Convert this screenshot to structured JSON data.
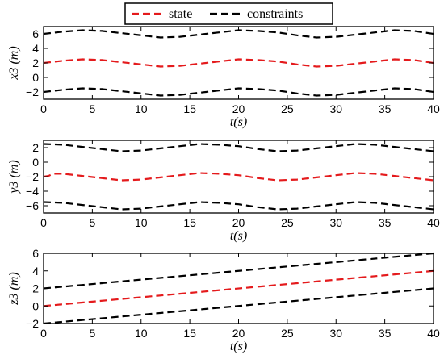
{
  "legend": {
    "items": [
      {
        "label": "state",
        "color": "#e41a1c"
      },
      {
        "label": "constraints",
        "color": "#000000"
      }
    ]
  },
  "chart_data": [
    {
      "type": "line",
      "xlabel": "t(s)",
      "ylabel": "x3 (m)",
      "xlim": [
        0,
        40
      ],
      "ylim": [
        -3,
        7
      ],
      "xticks": [
        0,
        5,
        10,
        15,
        20,
        25,
        30,
        35,
        40
      ],
      "yticks": [
        -2,
        0,
        2,
        4,
        6
      ],
      "grid": false,
      "series": [
        {
          "role": "state",
          "color": "#e41a1c",
          "x": [
            0,
            2,
            4,
            6,
            8,
            10,
            12,
            14,
            16,
            18,
            20,
            22,
            24,
            26,
            28,
            30,
            32,
            34,
            36,
            38,
            40
          ],
          "values": [
            2.0,
            2.3,
            2.5,
            2.4,
            2.1,
            1.8,
            1.5,
            1.6,
            1.9,
            2.2,
            2.5,
            2.4,
            2.2,
            1.8,
            1.5,
            1.6,
            1.9,
            2.2,
            2.5,
            2.4,
            2.0
          ]
        },
        {
          "role": "upper-constraint",
          "color": "#000000",
          "x": [
            0,
            2,
            4,
            6,
            8,
            10,
            12,
            14,
            16,
            18,
            20,
            22,
            24,
            26,
            28,
            30,
            32,
            34,
            36,
            38,
            40
          ],
          "values": [
            6.0,
            6.3,
            6.5,
            6.4,
            6.1,
            5.8,
            5.5,
            5.6,
            5.9,
            6.2,
            6.5,
            6.4,
            6.2,
            5.8,
            5.5,
            5.6,
            5.9,
            6.2,
            6.5,
            6.4,
            6.0
          ]
        },
        {
          "role": "lower-constraint",
          "color": "#000000",
          "x": [
            0,
            2,
            4,
            6,
            8,
            10,
            12,
            14,
            16,
            18,
            20,
            22,
            24,
            26,
            28,
            30,
            32,
            34,
            36,
            38,
            40
          ],
          "values": [
            -2.0,
            -1.7,
            -1.5,
            -1.6,
            -1.9,
            -2.2,
            -2.5,
            -2.4,
            -2.1,
            -1.8,
            -1.5,
            -1.6,
            -1.8,
            -2.2,
            -2.5,
            -2.4,
            -2.1,
            -1.8,
            -1.5,
            -1.6,
            -2.0
          ]
        }
      ]
    },
    {
      "type": "line",
      "xlabel": "t(s)",
      "ylabel": "y3 (m)",
      "xlim": [
        0,
        40
      ],
      "ylim": [
        -7,
        3
      ],
      "xticks": [
        0,
        5,
        10,
        15,
        20,
        25,
        30,
        35,
        40
      ],
      "yticks": [
        -6,
        -4,
        -2,
        0,
        2
      ],
      "grid": false,
      "series": [
        {
          "role": "state",
          "color": "#e41a1c",
          "x": [
            0,
            0.5,
            1,
            2,
            4,
            6,
            8,
            10,
            12,
            14,
            16,
            18,
            20,
            22,
            24,
            26,
            28,
            30,
            32,
            34,
            36,
            38,
            40
          ],
          "values": [
            -2.0,
            -1.9,
            -1.6,
            -1.6,
            -1.9,
            -2.2,
            -2.5,
            -2.4,
            -2.1,
            -1.8,
            -1.5,
            -1.6,
            -1.8,
            -2.2,
            -2.5,
            -2.4,
            -2.1,
            -1.8,
            -1.5,
            -1.6,
            -1.9,
            -2.2,
            -2.5
          ]
        },
        {
          "role": "upper-constraint",
          "color": "#000000",
          "x": [
            0,
            2,
            4,
            6,
            8,
            10,
            12,
            14,
            16,
            18,
            20,
            22,
            24,
            26,
            28,
            30,
            32,
            34,
            36,
            38,
            40
          ],
          "values": [
            2.5,
            2.4,
            2.1,
            1.8,
            1.5,
            1.6,
            1.9,
            2.2,
            2.5,
            2.4,
            2.2,
            1.8,
            1.5,
            1.6,
            1.9,
            2.2,
            2.5,
            2.4,
            2.1,
            1.8,
            1.5
          ]
        },
        {
          "role": "lower-constraint",
          "color": "#000000",
          "x": [
            0,
            2,
            4,
            6,
            8,
            10,
            12,
            14,
            16,
            18,
            20,
            22,
            24,
            26,
            28,
            30,
            32,
            34,
            36,
            38,
            40
          ],
          "values": [
            -5.5,
            -5.6,
            -5.9,
            -6.2,
            -6.5,
            -6.4,
            -6.1,
            -5.8,
            -5.5,
            -5.6,
            -5.8,
            -6.2,
            -6.5,
            -6.4,
            -6.1,
            -5.8,
            -5.5,
            -5.6,
            -5.9,
            -6.2,
            -6.5
          ]
        }
      ]
    },
    {
      "type": "line",
      "xlabel": "t(s)",
      "ylabel": "z3 (m)",
      "xlim": [
        0,
        40
      ],
      "ylim": [
        -2,
        6
      ],
      "xticks": [
        0,
        5,
        10,
        15,
        20,
        25,
        30,
        35,
        40
      ],
      "yticks": [
        -2,
        0,
        2,
        4,
        6
      ],
      "grid": false,
      "series": [
        {
          "role": "state",
          "color": "#e41a1c",
          "x": [
            0,
            40
          ],
          "values": [
            0,
            4
          ]
        },
        {
          "role": "upper-constraint",
          "color": "#000000",
          "x": [
            0,
            40
          ],
          "values": [
            2,
            6
          ]
        },
        {
          "role": "lower-constraint",
          "color": "#000000",
          "x": [
            0,
            40
          ],
          "values": [
            -2,
            2
          ]
        }
      ]
    }
  ]
}
